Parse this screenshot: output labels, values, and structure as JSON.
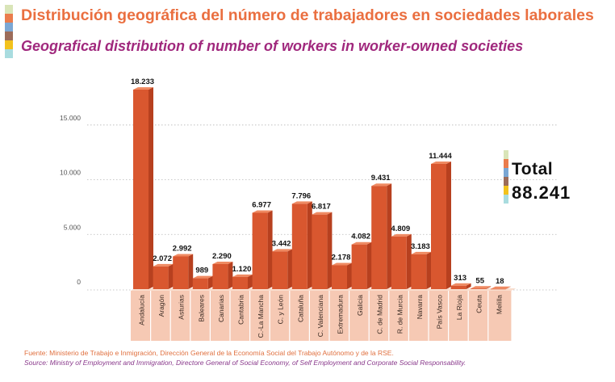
{
  "header": {
    "title_es": "Distribución geográfica del número de trabajadores en sociedades laborales",
    "title_en": "Geografical distribution of number of workers in worker-owned societies",
    "stripe_colors": [
      "#d9e5b8",
      "#ea7c4c",
      "#7ba7d4",
      "#9c6c5a",
      "#f2c21c",
      "#a9dcdf"
    ]
  },
  "total": {
    "label": "Total",
    "value": "88.241"
  },
  "footer": {
    "source_es": "Fuente: Ministerio de Trabajo e Inmigración, Dirección General de la Economía Social del Trabajo Autónomo y de la RSE.",
    "source_en": "Source: Ministry of Employment and Immigration, Directore General of Social Economy, of Self Employment and Corporate Social Responsability."
  },
  "chart_data": {
    "type": "bar",
    "title": "",
    "xlabel": "",
    "ylabel": "",
    "ylim": [
      0,
      18233
    ],
    "y_ticks": [
      0,
      5000,
      10000,
      15000
    ],
    "y_tick_labels": [
      "0",
      "5.000",
      "10.000",
      "15.000"
    ],
    "grid": "horizontal dotted",
    "bar_color": "#d9572f",
    "label_band_color": "#f6c9b4",
    "categories": [
      "Andalucía",
      "Aragón",
      "Asturias",
      "Baleares",
      "Canarias",
      "Cantabria",
      "C.-La Mancha",
      "C. y León",
      "Cataluña",
      "C. Valenciana",
      "Extremadura",
      "Galicia",
      "C. de Madrid",
      "R. de Murcia",
      "Navarra",
      "País Vasco",
      "La Rioja",
      "Ceuta",
      "Melilla"
    ],
    "values": [
      18233,
      2072,
      2992,
      989,
      2290,
      1120,
      6977,
      3442,
      7796,
      6817,
      2178,
      4082,
      9431,
      4809,
      3183,
      11444,
      313,
      55,
      18
    ],
    "value_labels": [
      "18.233",
      "2.072",
      "2.992",
      "989",
      "2.290",
      "1.120",
      "6.977",
      "3.442",
      "7.796",
      "6.817",
      "2.178",
      "4.082",
      "9.431",
      "4.809",
      "3.183",
      "11.444",
      "313",
      "55",
      "18"
    ]
  }
}
